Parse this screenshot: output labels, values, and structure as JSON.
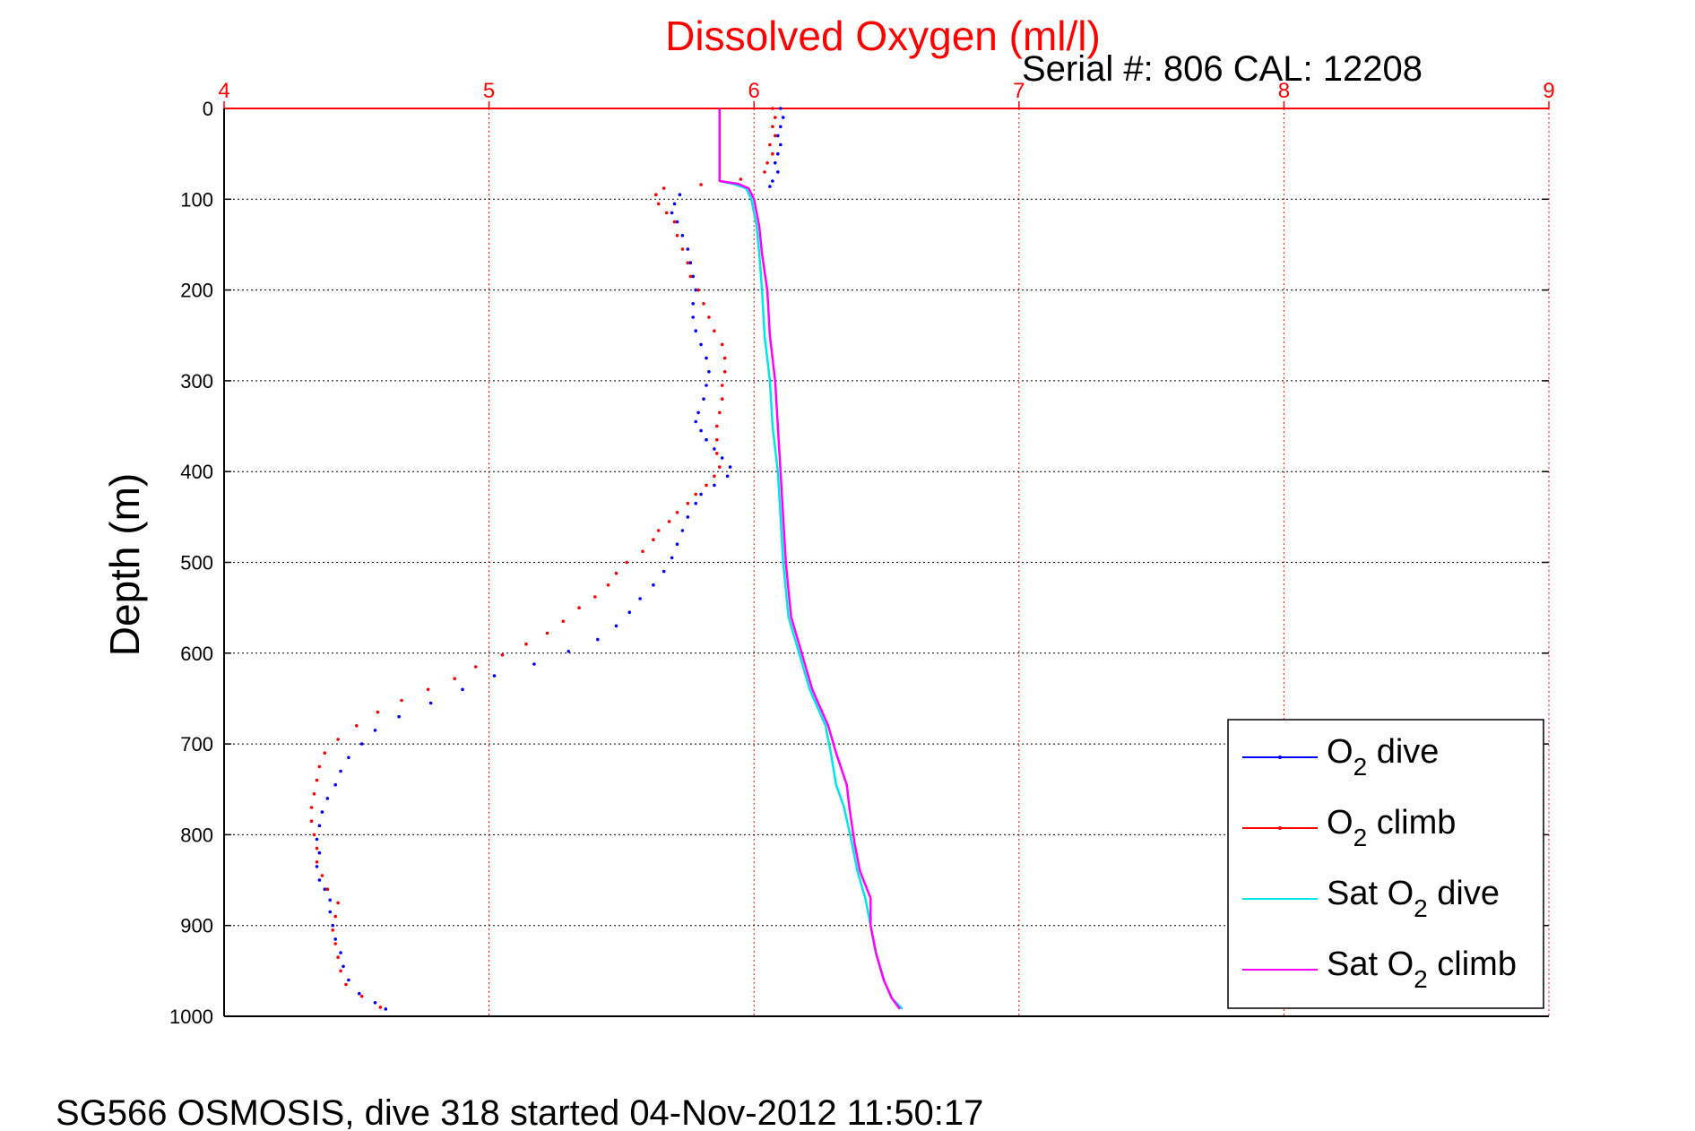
{
  "chart_data": {
    "type": "scatter",
    "title": "Dissolved Oxygen (ml/l)",
    "subtitle": "Serial #: 806  CAL: 12208",
    "ylabel": "Depth (m)",
    "caption": "SG566 OSMOSIS, dive 318 started 04-Nov-2012 11:50:17",
    "xlim": [
      4,
      9
    ],
    "ylim": [
      0,
      1000
    ],
    "y_reversed": true,
    "x_axis_position": "top",
    "xticks": [
      "4",
      "5",
      "6",
      "7",
      "8",
      "9"
    ],
    "yticks": [
      "0",
      "100",
      "200",
      "300",
      "400",
      "500",
      "600",
      "700",
      "800",
      "900",
      "1000"
    ],
    "grid": true,
    "legend_position": "bottom-right",
    "series": [
      {
        "name_main": "O",
        "name_sub": "2",
        "name_rest": " dive",
        "style": "dots",
        "color": "#0000ff",
        "points": [
          [
            6.1,
            0
          ],
          [
            6.11,
            10
          ],
          [
            6.1,
            20
          ],
          [
            6.09,
            30
          ],
          [
            6.1,
            40
          ],
          [
            6.09,
            50
          ],
          [
            6.08,
            60
          ],
          [
            6.09,
            70
          ],
          [
            6.07,
            80
          ],
          [
            6.06,
            86
          ],
          [
            5.72,
            95
          ],
          [
            5.7,
            105
          ],
          [
            5.69,
            115
          ],
          [
            5.71,
            125
          ],
          [
            5.73,
            140
          ],
          [
            5.75,
            155
          ],
          [
            5.76,
            170
          ],
          [
            5.77,
            185
          ],
          [
            5.78,
            200
          ],
          [
            5.77,
            215
          ],
          [
            5.77,
            230
          ],
          [
            5.78,
            245
          ],
          [
            5.8,
            260
          ],
          [
            5.82,
            275
          ],
          [
            5.83,
            290
          ],
          [
            5.82,
            305
          ],
          [
            5.81,
            320
          ],
          [
            5.79,
            335
          ],
          [
            5.78,
            345
          ],
          [
            5.8,
            355
          ],
          [
            5.82,
            365
          ],
          [
            5.85,
            375
          ],
          [
            5.88,
            385
          ],
          [
            5.91,
            395
          ],
          [
            5.9,
            405
          ],
          [
            5.85,
            415
          ],
          [
            5.8,
            425
          ],
          [
            5.78,
            435
          ],
          [
            5.75,
            450
          ],
          [
            5.73,
            465
          ],
          [
            5.71,
            480
          ],
          [
            5.69,
            495
          ],
          [
            5.66,
            510
          ],
          [
            5.62,
            525
          ],
          [
            5.57,
            540
          ],
          [
            5.53,
            555
          ],
          [
            5.48,
            570
          ],
          [
            5.41,
            585
          ],
          [
            5.3,
            598
          ],
          [
            5.17,
            612
          ],
          [
            5.02,
            625
          ],
          [
            4.9,
            640
          ],
          [
            4.78,
            655
          ],
          [
            4.66,
            670
          ],
          [
            4.57,
            685
          ],
          [
            4.52,
            700
          ],
          [
            4.47,
            715
          ],
          [
            4.44,
            730
          ],
          [
            4.42,
            745
          ],
          [
            4.39,
            760
          ],
          [
            4.37,
            775
          ],
          [
            4.36,
            790
          ],
          [
            4.35,
            805
          ],
          [
            4.36,
            820
          ],
          [
            4.35,
            835
          ],
          [
            4.36,
            850
          ],
          [
            4.38,
            860
          ],
          [
            4.4,
            872
          ],
          [
            4.4,
            885
          ],
          [
            4.41,
            900
          ],
          [
            4.42,
            915
          ],
          [
            4.44,
            930
          ],
          [
            4.45,
            945
          ],
          [
            4.47,
            960
          ],
          [
            4.51,
            975
          ],
          [
            4.57,
            985
          ],
          [
            4.61,
            992
          ]
        ]
      },
      {
        "name_main": "O",
        "name_sub": "2",
        "name_rest": " climb",
        "style": "dots",
        "color": "#ff0000",
        "points": [
          [
            6.07,
            0
          ],
          [
            6.08,
            10
          ],
          [
            6.07,
            20
          ],
          [
            6.08,
            30
          ],
          [
            6.06,
            40
          ],
          [
            6.07,
            50
          ],
          [
            6.05,
            60
          ],
          [
            6.04,
            70
          ],
          [
            5.95,
            78
          ],
          [
            5.8,
            84
          ],
          [
            5.66,
            88
          ],
          [
            5.63,
            95
          ],
          [
            5.64,
            105
          ],
          [
            5.67,
            115
          ],
          [
            5.7,
            125
          ],
          [
            5.71,
            140
          ],
          [
            5.73,
            155
          ],
          [
            5.75,
            170
          ],
          [
            5.76,
            185
          ],
          [
            5.79,
            200
          ],
          [
            5.81,
            215
          ],
          [
            5.83,
            230
          ],
          [
            5.85,
            245
          ],
          [
            5.88,
            260
          ],
          [
            5.89,
            275
          ],
          [
            5.89,
            290
          ],
          [
            5.88,
            305
          ],
          [
            5.88,
            320
          ],
          [
            5.87,
            335
          ],
          [
            5.86,
            350
          ],
          [
            5.86,
            365
          ],
          [
            5.86,
            380
          ],
          [
            5.87,
            395
          ],
          [
            5.85,
            405
          ],
          [
            5.82,
            415
          ],
          [
            5.78,
            425
          ],
          [
            5.75,
            435
          ],
          [
            5.71,
            445
          ],
          [
            5.68,
            455
          ],
          [
            5.64,
            465
          ],
          [
            5.62,
            475
          ],
          [
            5.58,
            488
          ],
          [
            5.52,
            500
          ],
          [
            5.48,
            512
          ],
          [
            5.45,
            525
          ],
          [
            5.4,
            538
          ],
          [
            5.34,
            550
          ],
          [
            5.28,
            565
          ],
          [
            5.22,
            578
          ],
          [
            5.14,
            590
          ],
          [
            5.05,
            602
          ],
          [
            4.95,
            615
          ],
          [
            4.87,
            628
          ],
          [
            4.77,
            640
          ],
          [
            4.67,
            652
          ],
          [
            4.58,
            665
          ],
          [
            4.5,
            680
          ],
          [
            4.43,
            695
          ],
          [
            4.38,
            710
          ],
          [
            4.36,
            725
          ],
          [
            4.35,
            740
          ],
          [
            4.34,
            755
          ],
          [
            4.33,
            770
          ],
          [
            4.33,
            785
          ],
          [
            4.34,
            800
          ],
          [
            4.35,
            815
          ],
          [
            4.35,
            830
          ],
          [
            4.37,
            845
          ],
          [
            4.39,
            860
          ],
          [
            4.43,
            875
          ],
          [
            4.42,
            890
          ],
          [
            4.41,
            905
          ],
          [
            4.42,
            920
          ],
          [
            4.43,
            935
          ],
          [
            4.44,
            950
          ],
          [
            4.46,
            965
          ],
          [
            4.52,
            978
          ],
          [
            4.59,
            990
          ]
        ]
      },
      {
        "name_main": "Sat O",
        "name_sub": "2",
        "name_rest": " dive",
        "style": "line",
        "color": "#00e5e5",
        "points": [
          [
            5.87,
            0
          ],
          [
            5.87,
            30
          ],
          [
            5.87,
            60
          ],
          [
            5.87,
            80
          ],
          [
            5.92,
            83
          ],
          [
            5.97,
            88
          ],
          [
            5.99,
            100
          ],
          [
            6.01,
            130
          ],
          [
            6.02,
            160
          ],
          [
            6.03,
            200
          ],
          [
            6.04,
            250
          ],
          [
            6.06,
            300
          ],
          [
            6.07,
            350
          ],
          [
            6.09,
            400
          ],
          [
            6.1,
            450
          ],
          [
            6.11,
            500
          ],
          [
            6.12,
            530
          ],
          [
            6.13,
            560
          ],
          [
            6.17,
            600
          ],
          [
            6.21,
            640
          ],
          [
            6.27,
            680
          ],
          [
            6.29,
            710
          ],
          [
            6.31,
            745
          ],
          [
            6.34,
            770
          ],
          [
            6.37,
            810
          ],
          [
            6.39,
            840
          ],
          [
            6.42,
            870
          ],
          [
            6.44,
            900
          ],
          [
            6.46,
            930
          ],
          [
            6.49,
            960
          ],
          [
            6.52,
            980
          ],
          [
            6.56,
            992
          ]
        ]
      },
      {
        "name_main": "Sat O",
        "name_sub": "2",
        "name_rest": " climb",
        "style": "line",
        "color": "#ff00ff",
        "points": [
          [
            5.87,
            0
          ],
          [
            5.87,
            30
          ],
          [
            5.87,
            60
          ],
          [
            5.87,
            80
          ],
          [
            5.94,
            83
          ],
          [
            5.98,
            88
          ],
          [
            6.0,
            100
          ],
          [
            6.02,
            130
          ],
          [
            6.03,
            160
          ],
          [
            6.05,
            200
          ],
          [
            6.06,
            250
          ],
          [
            6.08,
            300
          ],
          [
            6.09,
            350
          ],
          [
            6.1,
            400
          ],
          [
            6.11,
            450
          ],
          [
            6.12,
            500
          ],
          [
            6.13,
            530
          ],
          [
            6.14,
            560
          ],
          [
            6.18,
            600
          ],
          [
            6.22,
            640
          ],
          [
            6.28,
            680
          ],
          [
            6.31,
            710
          ],
          [
            6.35,
            745
          ],
          [
            6.36,
            770
          ],
          [
            6.38,
            810
          ],
          [
            6.4,
            840
          ],
          [
            6.44,
            870
          ],
          [
            6.44,
            900
          ],
          [
            6.46,
            930
          ],
          [
            6.49,
            960
          ],
          [
            6.52,
            980
          ],
          [
            6.55,
            992
          ]
        ]
      }
    ]
  }
}
